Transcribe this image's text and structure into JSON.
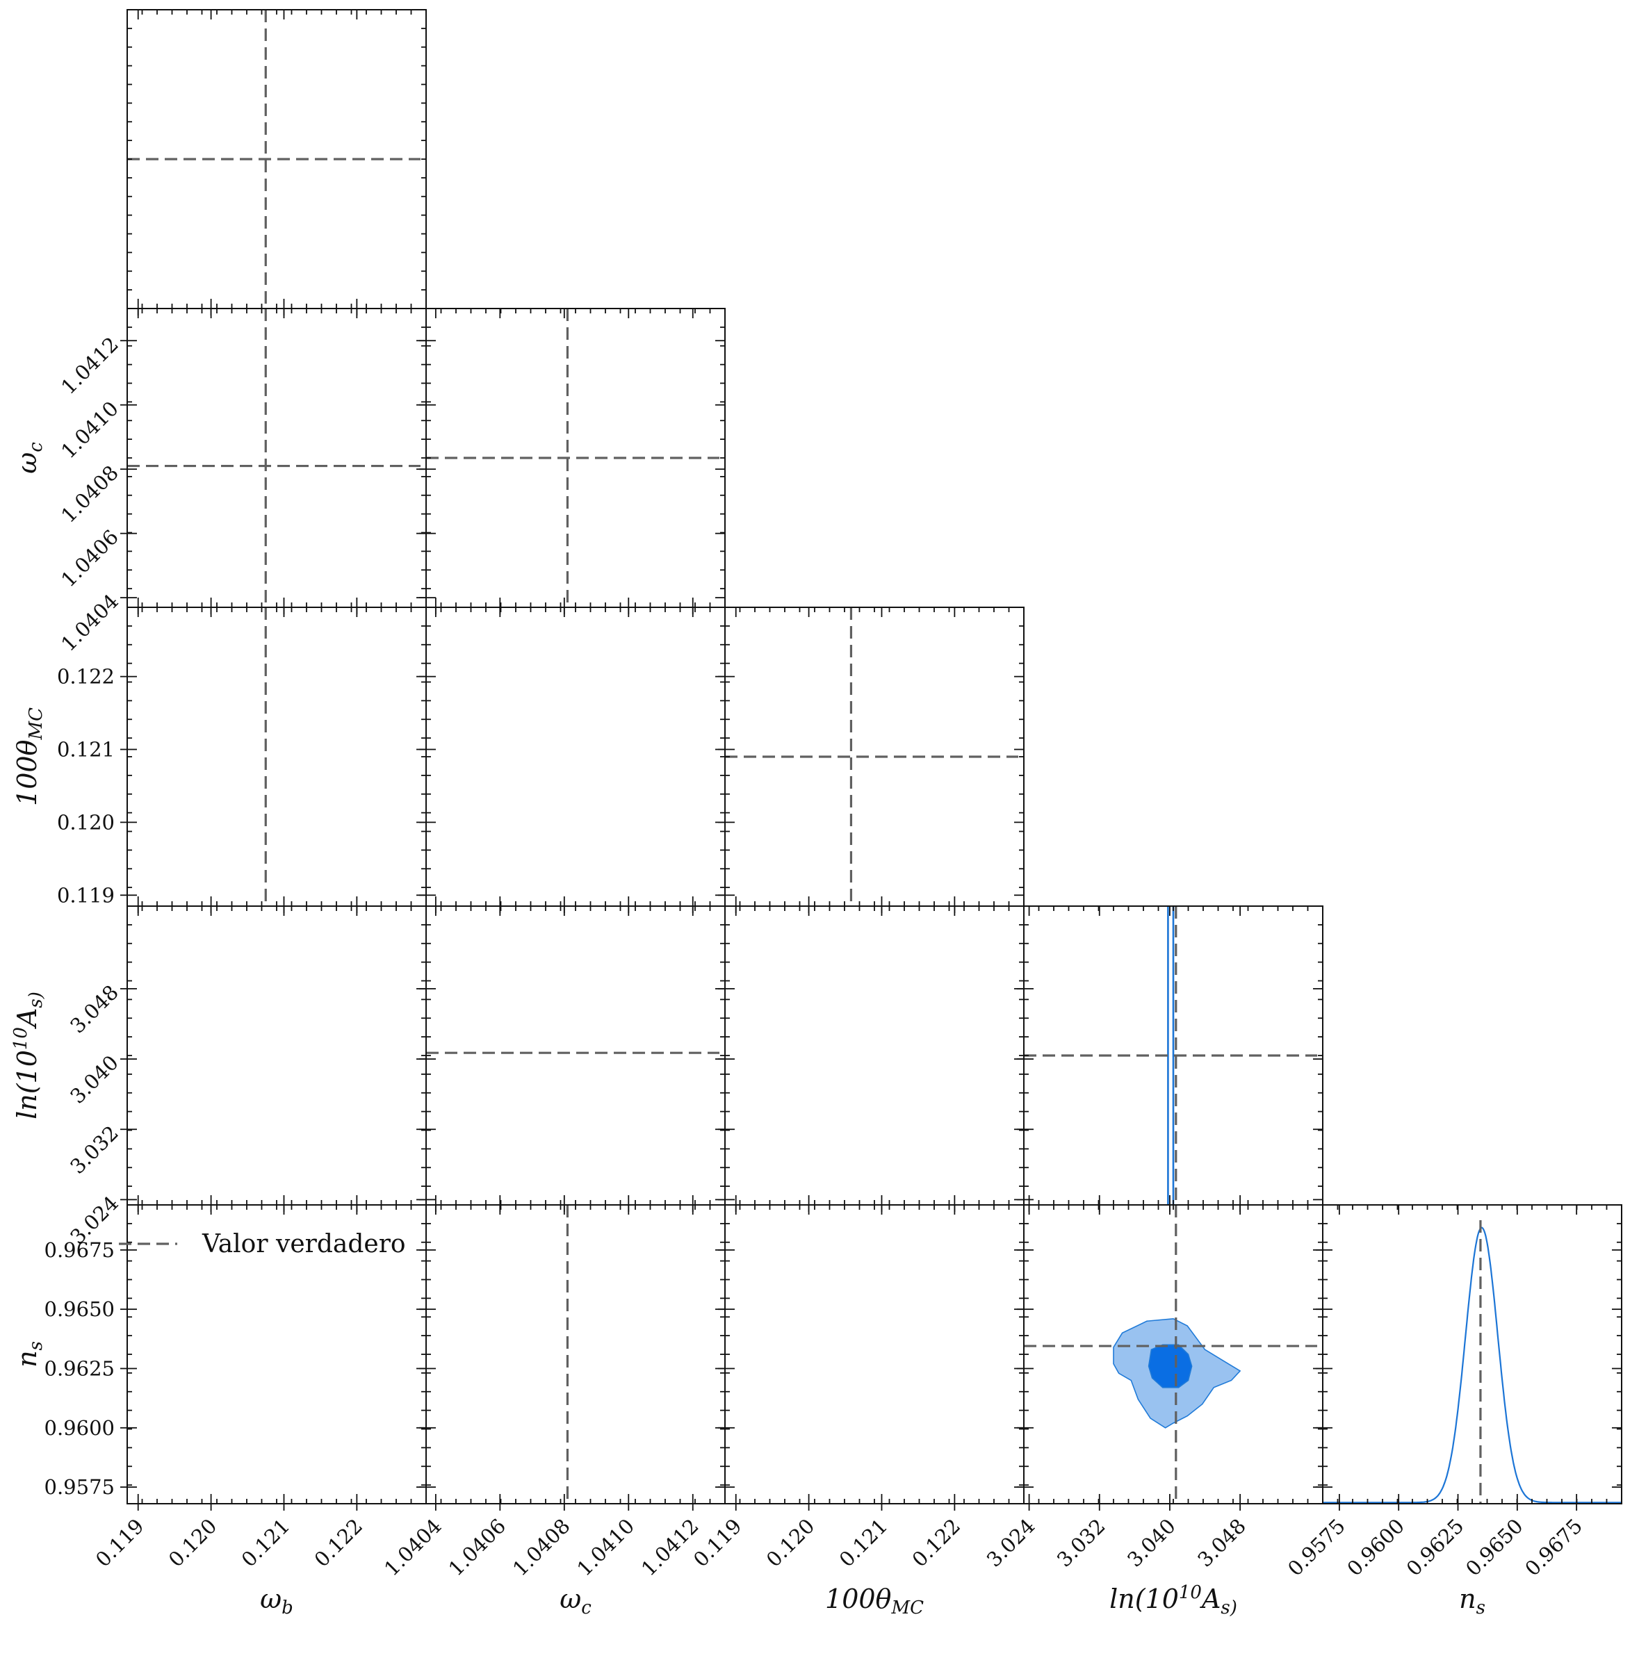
{
  "chart_data": {
    "type": "corner",
    "parameters": [
      "omega_b",
      "omega_c",
      "100theta_MC",
      "ln10As",
      "n_s"
    ],
    "axis_labels": {
      "x": [
        "ω",
        "ω",
        "100θ",
        "ln(10",
        "n"
      ],
      "x_sub": [
        "b",
        "c",
        "MC",
        "",
        "s"
      ],
      "x_sup": [
        "",
        "",
        "",
        "10",
        ""
      ],
      "x_tail": [
        "",
        "",
        "",
        "A",
        ""
      ],
      "x_tail_sub": [
        "",
        "",
        "",
        "s)",
        ""
      ],
      "y": [
        "",
        "ω",
        "100θ",
        "ln(10",
        "n"
      ],
      "y_sub": [
        "",
        "c",
        "MC",
        "",
        "s"
      ],
      "y_sup": [
        "",
        "",
        "",
        "10",
        ""
      ],
      "y_tail": [
        "",
        "",
        "",
        "A",
        ""
      ],
      "y_tail_sub": [
        "",
        "",
        "",
        "s)",
        ""
      ]
    },
    "axis_ranges": [
      [
        0.11885,
        0.12295
      ],
      [
        1.04037,
        1.0413
      ],
      [
        0.11885,
        0.12295
      ],
      [
        3.0234,
        3.0574
      ],
      [
        0.9568,
        0.9694
      ]
    ],
    "x_ticks": [
      [
        "0.119",
        "0.120",
        "0.121",
        "0.122"
      ],
      [
        "1.0404",
        "1.0406",
        "1.0408",
        "1.0410",
        "1.0412"
      ],
      [
        "0.119",
        "0.120",
        "0.121",
        "0.122"
      ],
      [
        "3.024",
        "3.032",
        "3.040",
        "3.048"
      ],
      [
        "0.9575",
        "0.9600",
        "0.9625",
        "0.9650",
        "0.9675"
      ]
    ],
    "y_ticks": [
      [],
      [
        "1.0404",
        "1.0406",
        "1.0408",
        "1.0410",
        "1.0412"
      ],
      [
        "0.119",
        "0.120",
        "0.121",
        "0.122"
      ],
      [
        "3.024",
        "3.032",
        "3.040",
        "3.048"
      ],
      [
        "0.9575",
        "0.9600",
        "0.9625",
        "0.9650",
        "0.9675"
      ]
    ],
    "true_values": [
      0.12075,
      1.04081,
      0.12058,
      3.0407,
      0.96345
    ],
    "posterior_1d": {
      "ln10As": {
        "lines": [
          3.0398,
          3.0404
        ]
      },
      "n_s": {
        "mean": 0.9635,
        "sigma": 0.00068,
        "peak": 0.92
      }
    },
    "posterior_2d": {
      "ln10As_vs_n_s": {
        "center": [
          3.04,
          0.9626
        ],
        "contour_95": [
          [
            3.0336,
            0.9627
          ],
          [
            3.0336,
            0.9634
          ],
          [
            3.0346,
            0.964
          ],
          [
            3.0374,
            0.9645
          ],
          [
            3.0404,
            0.9646
          ],
          [
            3.042,
            0.9643
          ],
          [
            3.044,
            0.9633
          ],
          [
            3.0462,
            0.9628
          ],
          [
            3.048,
            0.9624
          ],
          [
            3.047,
            0.962
          ],
          [
            3.045,
            0.9617
          ],
          [
            3.0437,
            0.961
          ],
          [
            3.042,
            0.9605
          ],
          [
            3.0404,
            0.9602
          ],
          [
            3.0395,
            0.96
          ],
          [
            3.0378,
            0.9604
          ],
          [
            3.0364,
            0.9612
          ],
          [
            3.0356,
            0.962
          ],
          [
            3.0342,
            0.9623
          ]
        ],
        "contour_68": [
          [
            3.0376,
            0.9626
          ],
          [
            3.0379,
            0.9633
          ],
          [
            3.0392,
            0.9635
          ],
          [
            3.041,
            0.9635
          ],
          [
            3.0421,
            0.9631
          ],
          [
            3.0425,
            0.9626
          ],
          [
            3.0421,
            0.962
          ],
          [
            3.041,
            0.9617
          ],
          [
            3.0392,
            0.9617
          ],
          [
            3.038,
            0.9621
          ]
        ]
      }
    },
    "legend": {
      "label": "Valor verdadero",
      "placement": "top-left of lower-left panel"
    },
    "colors": {
      "truth": "#606060",
      "posterior_line": "#1c75d6",
      "contour_95_fill": "#99c2f0",
      "contour_68_fill": "#0a6ee3",
      "contour_edge": "#1f7ad8",
      "axes": "#111111"
    }
  }
}
